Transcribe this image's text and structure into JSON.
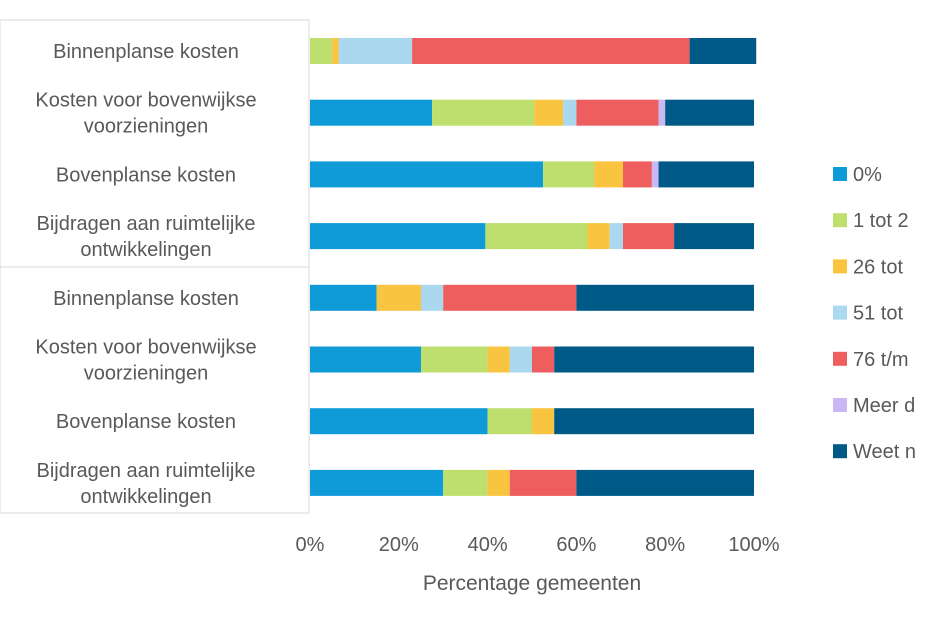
{
  "chart_data": {
    "type": "bar",
    "orientation": "horizontal",
    "stacked": "percent",
    "xlabel": "Percentage gemeenten",
    "xlim": [
      0,
      100
    ],
    "x_ticks": [
      "0%",
      "20%",
      "40%",
      "60%",
      "80%",
      "100%"
    ],
    "legend_position": "right",
    "grid": false,
    "category_groups": 2,
    "categories": [
      [
        "Binnenplanse kosten"
      ],
      [
        "Kosten voor bovenwijkse",
        "voorzieningen"
      ],
      [
        "Bovenplanse kosten"
      ],
      [
        "Bijdragen aan ruimtelijke",
        "ontwikkelingen"
      ],
      [
        "Binnenplanse kosten"
      ],
      [
        "Kosten voor bovenwijkse",
        "voorzieningen"
      ],
      [
        "Bovenplanse kosten"
      ],
      [
        "Bijdragen aan ruimtelijke",
        "ontwikkelingen"
      ]
    ],
    "series": [
      {
        "name": "0%",
        "color": "#0F9BD7",
        "values": [
          0,
          27.5,
          52.5,
          39.5,
          15,
          25,
          40,
          30
        ]
      },
      {
        "name": "1 tot 2",
        "color": "#BEDF6E",
        "values": [
          5,
          23,
          11.5,
          23,
          0,
          15,
          10,
          10
        ]
      },
      {
        "name": "26 tot",
        "color": "#F9C440",
        "values": [
          1.5,
          6.5,
          6.5,
          5,
          10,
          5,
          5,
          5
        ]
      },
      {
        "name": "51 tot",
        "color": "#AAD8EE",
        "values": [
          16.5,
          3,
          0,
          3,
          5,
          5,
          0,
          0
        ]
      },
      {
        "name": "76 t/m",
        "color": "#EE5E5E",
        "values": [
          62.5,
          18.5,
          6.5,
          11.5,
          30,
          5,
          0,
          15
        ]
      },
      {
        "name": "Meer d",
        "color": "#C9B8F3",
        "values": [
          0,
          1.5,
          1.5,
          0,
          0,
          0,
          0,
          0
        ]
      },
      {
        "name": "Weet n",
        "color": "#005A87",
        "values": [
          15,
          20,
          21.5,
          18,
          40,
          45,
          45,
          40
        ]
      }
    ]
  }
}
